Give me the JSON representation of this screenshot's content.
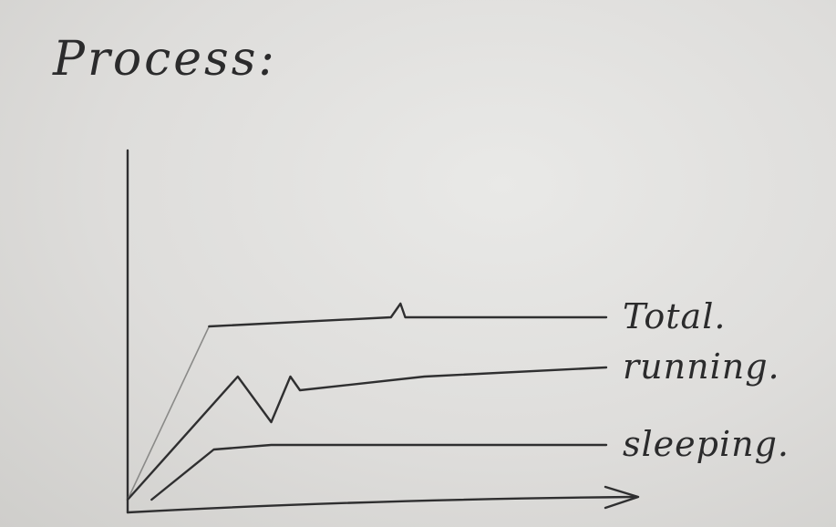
{
  "title": "Process:",
  "chart_data": {
    "type": "line",
    "title": "Process:",
    "xlabel": "",
    "ylabel": "",
    "xlim": [
      0,
      100
    ],
    "ylim": [
      0,
      40
    ],
    "grid": false,
    "legend": "inline labels at the right end of each line",
    "series": [
      {
        "name": "Total.",
        "x": [
          0,
          17,
          55,
          57,
          58,
          60,
          100
        ],
        "y": [
          0,
          38,
          40,
          43,
          40,
          40,
          40
        ]
      },
      {
        "name": "running.",
        "x": [
          0,
          23,
          30,
          34,
          36,
          62,
          100
        ],
        "y": [
          0,
          27,
          17,
          27,
          24,
          27,
          29
        ]
      },
      {
        "name": "sleeping.",
        "x": [
          5,
          18,
          30,
          100
        ],
        "y": [
          0,
          11,
          12,
          12
        ]
      }
    ]
  }
}
